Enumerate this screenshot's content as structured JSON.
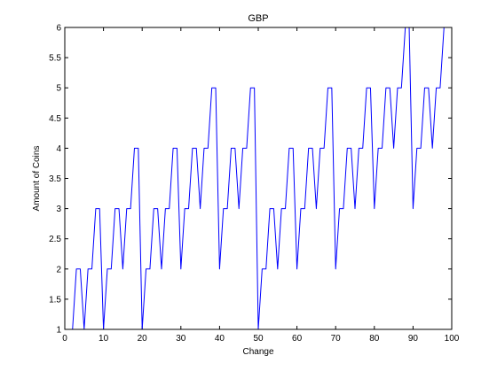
{
  "chart_data": {
    "type": "line",
    "title": "GBP",
    "xlabel": "Change",
    "ylabel": "Amount of Coins",
    "xlim": [
      0,
      100
    ],
    "ylim": [
      1,
      6
    ],
    "xticks": [
      0,
      10,
      20,
      30,
      40,
      50,
      60,
      70,
      80,
      90,
      100
    ],
    "yticks": [
      1,
      1.5,
      2,
      2.5,
      3,
      3.5,
      4,
      4.5,
      5,
      5.5,
      6
    ],
    "xtick_labels": [
      "0",
      "10",
      "20",
      "30",
      "40",
      "50",
      "60",
      "70",
      "80",
      "90",
      "100"
    ],
    "ytick_labels": [
      "1",
      "1.5",
      "2",
      "2.5",
      "3",
      "3.5",
      "4",
      "4.5",
      "5",
      "5.5",
      "6"
    ],
    "grid": false,
    "line_color": "#0000ff",
    "series": [
      {
        "x": [
          1,
          2,
          3,
          4,
          5,
          6,
          7,
          8,
          9,
          10,
          11,
          12,
          13,
          14,
          15,
          16,
          17,
          18,
          19,
          20,
          21,
          22,
          23,
          24,
          25,
          26,
          27,
          28,
          29,
          30,
          31,
          32,
          33,
          34,
          35,
          36,
          37,
          38,
          39,
          40,
          41,
          42,
          43,
          44,
          45,
          46,
          47,
          48,
          49,
          50,
          51,
          52,
          53,
          54,
          55,
          56,
          57,
          58,
          59,
          60,
          61,
          62,
          63,
          64,
          65,
          66,
          67,
          68,
          69,
          70,
          71,
          72,
          73,
          74,
          75,
          76,
          77,
          78,
          79,
          80,
          81,
          82,
          83,
          84,
          85,
          86,
          87,
          88,
          89,
          90,
          91,
          92,
          93,
          94,
          95,
          96,
          97,
          98,
          99
        ],
        "values": [
          1,
          1,
          2,
          2,
          1,
          2,
          2,
          3,
          3,
          1,
          2,
          2,
          3,
          3,
          2,
          3,
          3,
          4,
          4,
          1,
          2,
          2,
          3,
          3,
          2,
          3,
          3,
          4,
          4,
          2,
          3,
          3,
          4,
          4,
          3,
          4,
          4,
          5,
          5,
          2,
          3,
          3,
          4,
          4,
          3,
          4,
          4,
          5,
          5,
          1,
          2,
          2,
          3,
          3,
          2,
          3,
          3,
          4,
          4,
          2,
          3,
          3,
          4,
          4,
          3,
          4,
          4,
          5,
          5,
          2,
          3,
          3,
          4,
          4,
          3,
          4,
          4,
          5,
          5,
          3,
          4,
          4,
          5,
          5,
          4,
          5,
          5,
          6,
          6,
          3,
          4,
          4,
          5,
          5,
          4,
          5,
          5,
          6,
          6
        ]
      }
    ]
  }
}
